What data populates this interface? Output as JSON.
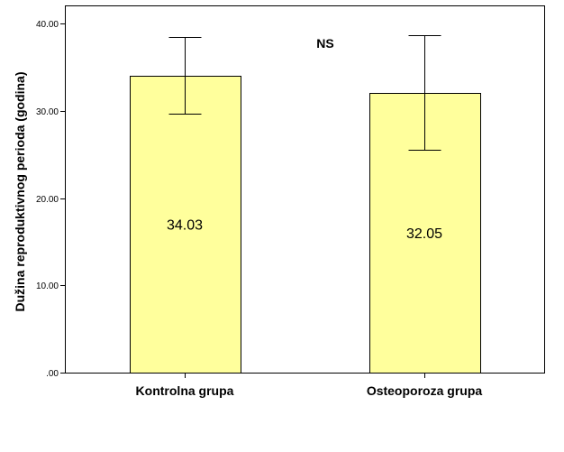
{
  "chart_data": {
    "type": "bar",
    "title": "",
    "xlabel": "",
    "ylabel": "Dužina reproduktivnog perioda (godina)",
    "ylim": [
      0,
      40
    ],
    "yticks": [
      ".00",
      "10.00",
      "20.00",
      "30.00",
      "40.00"
    ],
    "grid": false,
    "categories": [
      "Kontrolna grupa",
      "Osteoporoza grupa"
    ],
    "values": [
      34.03,
      32.05
    ],
    "data_labels": [
      "34.03",
      "32.05"
    ],
    "error_bars": [
      {
        "low": 29.7,
        "high": 38.5
      },
      {
        "low": 25.5,
        "high": 38.7
      }
    ],
    "annotation": "NS",
    "colors": {
      "bar_fill": "#ffff9c",
      "bar_stroke": "#000000",
      "axis": "#000000",
      "background": "#ffffff"
    }
  }
}
